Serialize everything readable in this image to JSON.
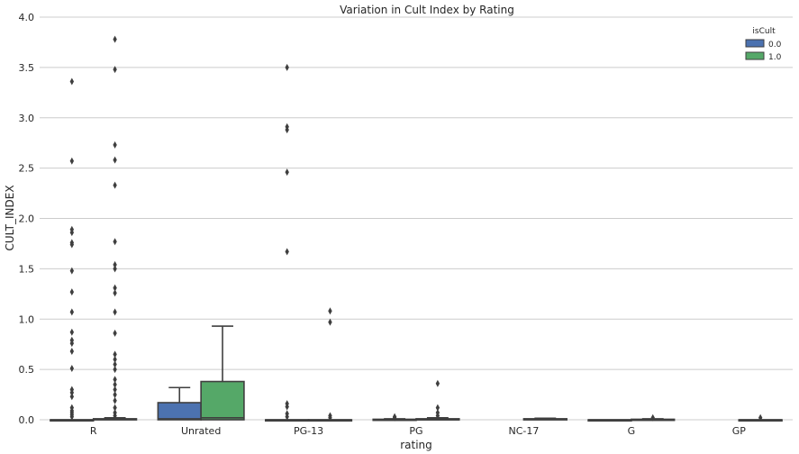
{
  "chart_data": {
    "type": "box",
    "title": "Variation in Cult Index by Rating",
    "xlabel": "rating",
    "ylabel": "CULT_INDEX",
    "ylim": [
      0,
      4.0
    ],
    "yticks": [
      "0.0",
      "0.5",
      "1.0",
      "1.5",
      "2.0",
      "2.5",
      "3.0",
      "3.5",
      "4.0"
    ],
    "grid": true,
    "legend": {
      "title": "isCult",
      "placement": "top-right"
    },
    "categories": [
      "R",
      "Unrated",
      "PG-13",
      "PG",
      "NC-17",
      "G",
      "GP"
    ],
    "series": [
      {
        "name": "0.0",
        "color": "#4c72b0",
        "boxes": [
          {
            "category": "R",
            "min": 0,
            "q1": 0,
            "median": 0,
            "q3": 0,
            "max": 0,
            "outliers": [
              3.36,
              2.57,
              1.89,
              1.86,
              1.76,
              1.74,
              1.48,
              1.27,
              1.07,
              0.87,
              0.79,
              0.76,
              0.68,
              0.51,
              0.3,
              0.27,
              0.23,
              0.12,
              0.09,
              0.07,
              0.05,
              0.03
            ]
          },
          {
            "category": "Unrated",
            "min": 0,
            "q1": 0,
            "median": 0.01,
            "q3": 0.17,
            "max": 0.32,
            "outliers": []
          },
          {
            "category": "PG-13",
            "min": 0,
            "q1": 0,
            "median": 0,
            "q3": 0,
            "max": 0,
            "outliers": [
              3.5,
              2.91,
              2.88,
              2.46,
              1.67,
              0.16,
              0.13,
              0.06,
              0.03
            ]
          },
          {
            "category": "PG",
            "min": 0,
            "q1": 0,
            "median": 0,
            "q3": 0.005,
            "max": 0.01,
            "outliers": [
              0.03,
              0.02
            ]
          },
          {
            "category": "G",
            "min": 0,
            "q1": 0,
            "median": 0,
            "q3": 0,
            "max": 0,
            "outliers": []
          }
        ]
      },
      {
        "name": "1.0",
        "color": "#55a868",
        "boxes": [
          {
            "category": "R",
            "min": 0,
            "q1": 0,
            "median": 0.005,
            "q3": 0.01,
            "max": 0.02,
            "outliers": [
              3.78,
              3.48,
              2.73,
              2.58,
              2.33,
              1.77,
              1.54,
              1.5,
              1.31,
              1.26,
              1.07,
              0.86,
              0.65,
              0.6,
              0.55,
              0.5,
              0.4,
              0.35,
              0.3,
              0.25,
              0.19,
              0.12,
              0.07,
              0.04
            ]
          },
          {
            "category": "Unrated",
            "min": 0,
            "q1": 0,
            "median": 0.02,
            "q3": 0.38,
            "max": 0.93,
            "outliers": []
          },
          {
            "category": "PG-13",
            "min": 0,
            "q1": 0,
            "median": 0,
            "q3": 0,
            "max": 0,
            "outliers": [
              1.08,
              0.97,
              0.04,
              0.02
            ]
          },
          {
            "category": "PG",
            "min": 0,
            "q1": 0,
            "median": 0,
            "q3": 0.01,
            "max": 0.02,
            "outliers": [
              0.36,
              0.12,
              0.07,
              0.04
            ]
          },
          {
            "category": "NC-17",
            "min": 0,
            "q1": 0,
            "median": 0.005,
            "q3": 0.01,
            "max": 0.015,
            "outliers": []
          },
          {
            "category": "G",
            "min": 0,
            "q1": 0,
            "median": 0,
            "q3": 0.005,
            "max": 0.01,
            "outliers": [
              0.02
            ]
          },
          {
            "category": "GP",
            "min": 0,
            "q1": 0,
            "median": 0,
            "q3": 0,
            "max": 0,
            "outliers": [
              0.02
            ]
          }
        ]
      }
    ]
  }
}
